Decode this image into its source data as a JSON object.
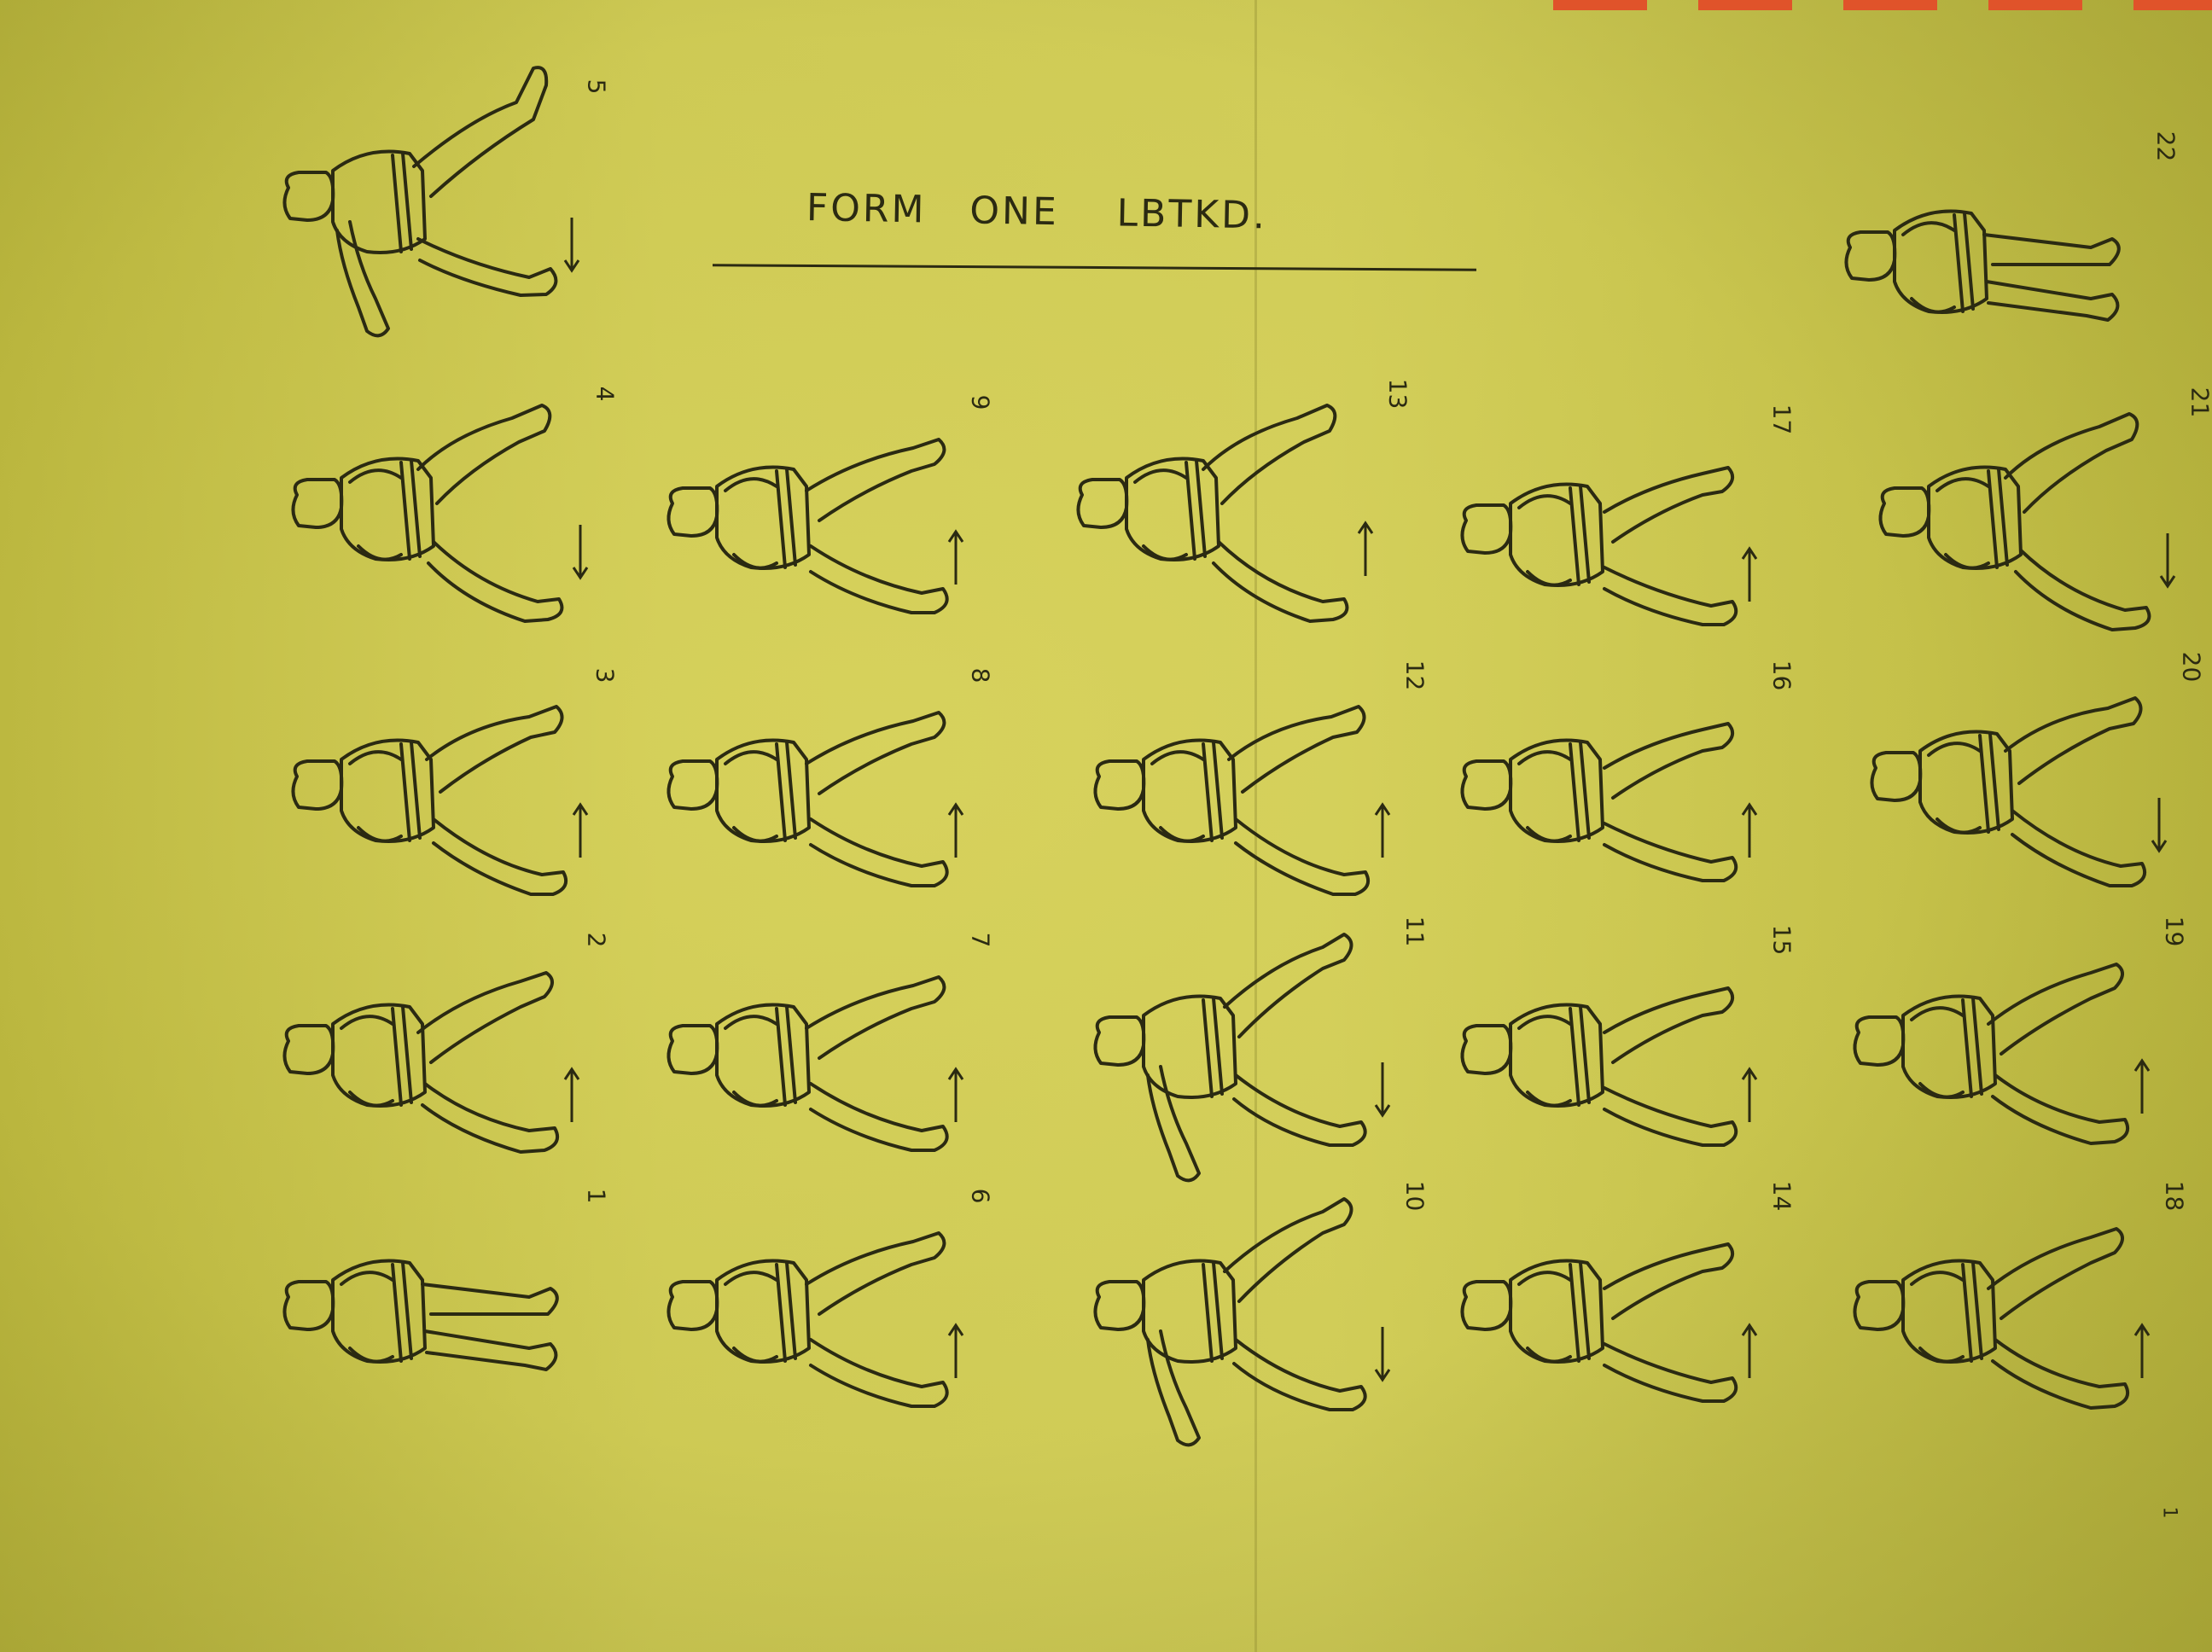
{
  "title": "FORM   ONE    LBTKD.",
  "steps": [
    {
      "label": "1"
    },
    {
      "label": "2"
    },
    {
      "label": "3"
    },
    {
      "label": "4"
    },
    {
      "label": "5"
    },
    {
      "label": "6"
    },
    {
      "label": "7"
    },
    {
      "label": "8"
    },
    {
      "label": "9"
    },
    {
      "label": "10"
    },
    {
      "label": "11"
    },
    {
      "label": "12"
    },
    {
      "label": "13"
    },
    {
      "label": "14"
    },
    {
      "label": "15"
    },
    {
      "label": "16"
    },
    {
      "label": "17"
    },
    {
      "label": "18"
    },
    {
      "label": "19"
    },
    {
      "label": "20"
    },
    {
      "label": "21"
    },
    {
      "label": "22"
    }
  ],
  "page_number": "1",
  "colors": {
    "paper": "#cfcb57",
    "ink": "#2b2a12",
    "tape": "#e0532a"
  }
}
